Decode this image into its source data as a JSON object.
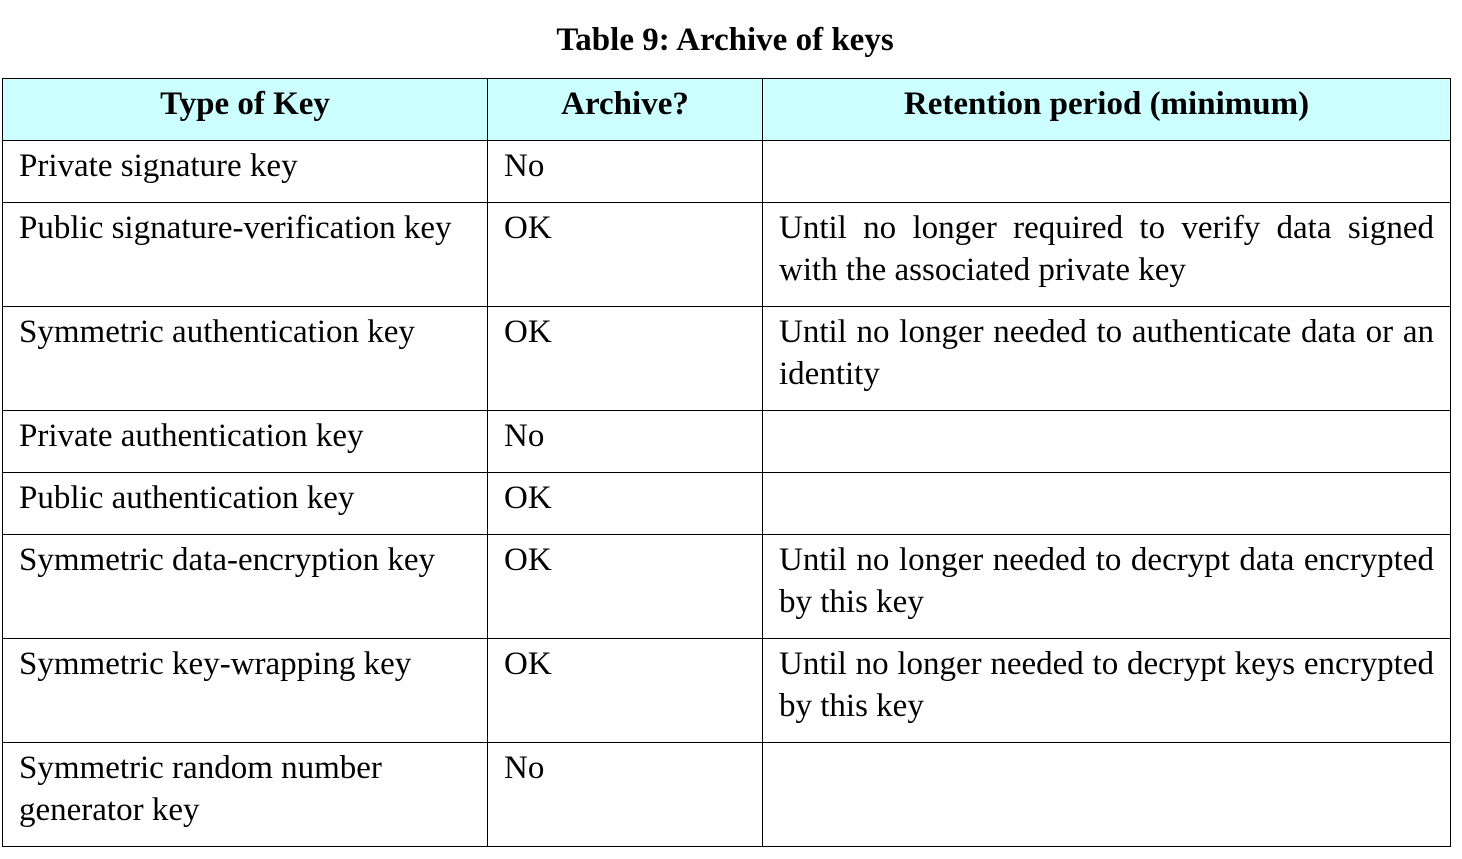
{
  "caption": "Table 9: Archive of keys",
  "headers": {
    "type_of_key": "Type of Key",
    "archive": "Archive?",
    "retention": "Retention period (minimum)"
  },
  "rows": [
    {
      "type": "Private signature key",
      "archive": "No",
      "retention": ""
    },
    {
      "type": "Public signature-verification key",
      "archive": "OK",
      "retention": "Until no longer required to verify data signed with the associated private key"
    },
    {
      "type": "Symmetric authentication key",
      "archive": "OK",
      "retention": "Until no longer needed to authenticate data or an identity"
    },
    {
      "type": "Private authentication key",
      "archive": "No",
      "retention": ""
    },
    {
      "type": "Public authentication key",
      "archive": "OK",
      "retention": ""
    },
    {
      "type": "Symmetric data-encryption key",
      "archive": "OK",
      "retention": "Until no longer needed to decrypt data encrypted by this key"
    },
    {
      "type": "Symmetric key-wrapping key",
      "archive": "OK",
      "retention": "Until no longer needed to decrypt keys encrypted by this key"
    },
    {
      "type": "Symmetric random number generator key",
      "archive": "No",
      "retention": ""
    }
  ]
}
